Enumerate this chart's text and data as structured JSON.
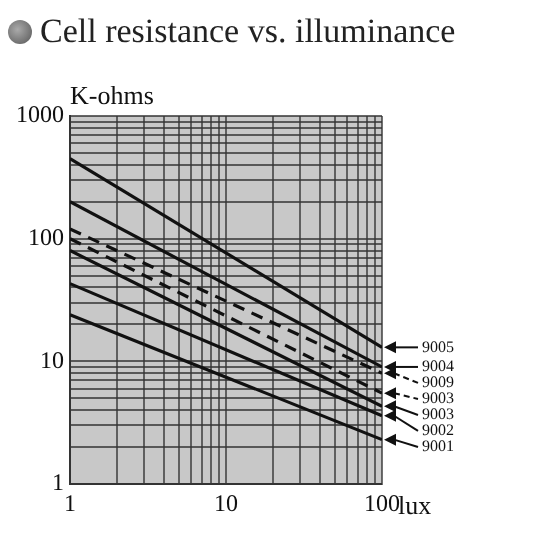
{
  "chart_data": {
    "type": "line",
    "title": "Cell resistance vs. illuminance",
    "ylabel": "K-ohms",
    "xlabel": "lux",
    "log": "xy",
    "grid": true,
    "legend": "right",
    "marker": "none",
    "xlim": [
      1,
      100
    ],
    "ylim": [
      1,
      1000
    ],
    "xticks": [
      1,
      {
        "value": 2,
        "label": null
      },
      {
        "value": 3,
        "label": null
      },
      {
        "value": 4,
        "label": null
      },
      {
        "value": 5,
        "label": null
      },
      {
        "value": 6,
        "label": null
      },
      {
        "value": 7,
        "label": null
      },
      {
        "value": 8,
        "label": null
      },
      {
        "value": 9,
        "label": null
      },
      10,
      {
        "value": 20,
        "label": null
      },
      {
        "value": 30,
        "label": null
      },
      {
        "value": 40,
        "label": null
      },
      {
        "value": 50,
        "label": null
      },
      {
        "value": 60,
        "label": null
      },
      {
        "value": 70,
        "label": null
      },
      {
        "value": 80,
        "label": null
      },
      {
        "value": 90,
        "label": null
      },
      100
    ],
    "yticks": [
      1,
      {
        "value": 2,
        "label": null
      },
      {
        "value": 3,
        "label": null
      },
      {
        "value": 4,
        "label": null
      },
      {
        "value": 5,
        "label": null
      },
      {
        "value": 6,
        "label": null
      },
      {
        "value": 7,
        "label": null
      },
      {
        "value": 8,
        "label": null
      },
      {
        "value": 9,
        "label": null
      },
      10,
      {
        "value": 20,
        "label": null
      },
      {
        "value": 30,
        "label": null
      },
      {
        "value": 40,
        "label": null
      },
      {
        "value": 50,
        "label": null
      },
      {
        "value": 60,
        "label": null
      },
      {
        "value": 70,
        "label": null
      },
      {
        "value": 80,
        "label": null
      },
      {
        "value": 90,
        "label": null
      },
      100,
      {
        "value": 200,
        "label": null
      },
      {
        "value": 300,
        "label": null
      },
      {
        "value": 400,
        "label": null
      },
      {
        "value": 500,
        "label": null
      },
      {
        "value": 600,
        "label": null
      },
      {
        "value": 700,
        "label": null
      },
      {
        "value": 800,
        "label": null
      },
      {
        "value": 900,
        "label": null
      },
      1000
    ],
    "x": [
      1,
      100
    ],
    "series": [
      {
        "name": "9005",
        "color": "#111111",
        "values": [
          450,
          13
        ],
        "line_style": "solid"
      },
      {
        "name": "9004",
        "color": "#111111",
        "values": [
          200,
          9
        ],
        "line_style": "solid"
      },
      {
        "name": "9009",
        "color": "#111111",
        "values": [
          120,
          8
        ],
        "line_style": "dashed"
      },
      {
        "name": "9003",
        "color": "#111111",
        "values": [
          100,
          5.5
        ],
        "line_style": "dashed"
      },
      {
        "name": "9003",
        "color": "#111111",
        "values": [
          80,
          4.3
        ],
        "line_style": "solid"
      },
      {
        "name": "9002",
        "color": "#111111",
        "values": [
          43,
          3.6
        ],
        "line_style": "solid"
      },
      {
        "name": "9001",
        "color": "#111111",
        "values": [
          24,
          2.3
        ],
        "line_style": "solid"
      }
    ]
  }
}
